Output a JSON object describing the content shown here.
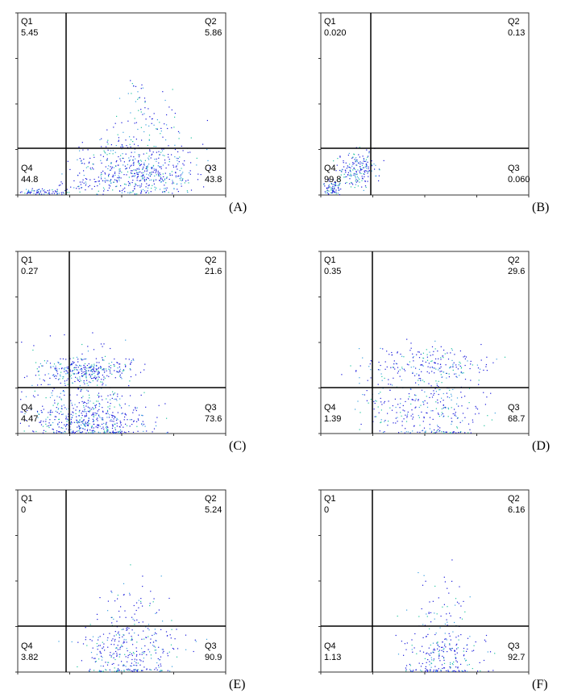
{
  "panels": [
    {
      "label": "(A)",
      "quadrants": [
        {
          "name": "Q1",
          "value": "5.45"
        },
        {
          "name": "Q2",
          "value": "5.86"
        },
        {
          "name": "Q3",
          "value": "43.8"
        },
        {
          "name": "Q4",
          "value": "44.8"
        }
      ]
    },
    {
      "label": "(B)",
      "quadrants": [
        {
          "name": "Q1",
          "value": "0.020"
        },
        {
          "name": "Q2",
          "value": "0.13"
        },
        {
          "name": "Q3",
          "value": "0.060"
        },
        {
          "name": "Q4",
          "value": "99.8"
        }
      ]
    },
    {
      "label": "(C)",
      "quadrants": [
        {
          "name": "Q1",
          "value": "0.27"
        },
        {
          "name": "Q2",
          "value": "21.6"
        },
        {
          "name": "Q3",
          "value": "73.6"
        },
        {
          "name": "Q4",
          "value": "4.47"
        }
      ]
    },
    {
      "label": "(D)",
      "quadrants": [
        {
          "name": "Q1",
          "value": "0.35"
        },
        {
          "name": "Q2",
          "value": "29.6"
        },
        {
          "name": "Q3",
          "value": "68.7"
        },
        {
          "name": "Q4",
          "value": "1.39"
        }
      ]
    },
    {
      "label": "(E)",
      "quadrants": [
        {
          "name": "Q1",
          "value": "0"
        },
        {
          "name": "Q2",
          "value": "5.24"
        },
        {
          "name": "Q3",
          "value": "90.9"
        },
        {
          "name": "Q4",
          "value": "3.82"
        }
      ]
    },
    {
      "label": "(F)",
      "quadrants": [
        {
          "name": "Q1",
          "value": "0"
        },
        {
          "name": "Q2",
          "value": "6.16"
        },
        {
          "name": "Q3",
          "value": "92.7"
        },
        {
          "name": "Q4",
          "value": "1.13"
        }
      ]
    }
  ]
}
